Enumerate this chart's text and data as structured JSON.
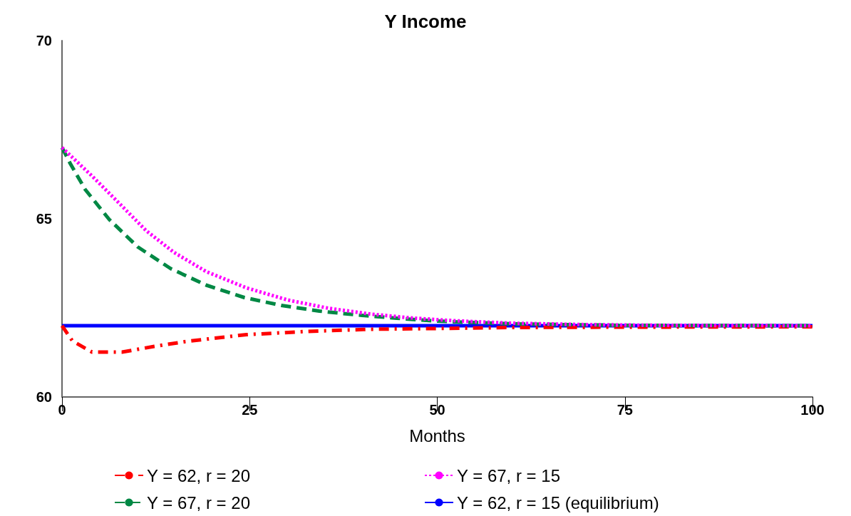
{
  "chart_data": {
    "type": "line",
    "title": "Y Income",
    "xlabel": "Months",
    "xlim": [
      0,
      100
    ],
    "xticks": [
      0,
      25,
      50,
      75,
      100
    ],
    "ylim": [
      60,
      70
    ],
    "yticks": [
      60,
      65,
      70
    ],
    "grid": false,
    "legend": "bottom",
    "marker": "none",
    "series": [
      {
        "name": "Y = 62, r = 20",
        "color": "#ff0000",
        "line_style": "dashdot",
        "x": [
          0,
          1.4,
          4,
          8,
          12.3,
          16.3,
          20.3,
          24.6,
          32.6,
          41,
          49.3,
          60,
          75,
          100
        ],
        "values": [
          62,
          61.57,
          61.26,
          61.26,
          61.42,
          61.55,
          61.65,
          61.75,
          61.84,
          61.9,
          61.92,
          61.95,
          61.96,
          61.97
        ]
      },
      {
        "name": "Y = 67, r = 20",
        "color": "#008844",
        "line_style": "dashed",
        "x": [
          0,
          1.1,
          3.1,
          6.3,
          10.1,
          14.5,
          19.2,
          24.3,
          29.2,
          34.3,
          39.4,
          44.6,
          49.7,
          60,
          75,
          100
        ],
        "values": [
          67,
          66.55,
          65.82,
          64.98,
          64.21,
          63.6,
          63.14,
          62.79,
          62.57,
          62.41,
          62.3,
          62.21,
          62.13,
          62.05,
          62.01,
          62
        ]
      },
      {
        "name": "Y = 67, r = 15",
        "color": "#ff00ff",
        "line_style": "dotted",
        "x": [
          0,
          4,
          7.6,
          11.2,
          14.9,
          19.2,
          24.6,
          30.1,
          35.5,
          41,
          46.4,
          52.2,
          60,
          70,
          80,
          100
        ],
        "values": [
          67,
          66.2,
          65.44,
          64.67,
          64.06,
          63.52,
          63.06,
          62.72,
          62.49,
          62.33,
          62.22,
          62.14,
          62.07,
          62.03,
          62.01,
          62
        ]
      },
      {
        "name": "Y = 62, r = 15 (equilibrium)",
        "color": "#0000ff",
        "line_style": "solid",
        "x": [
          0,
          100
        ],
        "values": [
          62,
          62
        ]
      }
    ]
  }
}
